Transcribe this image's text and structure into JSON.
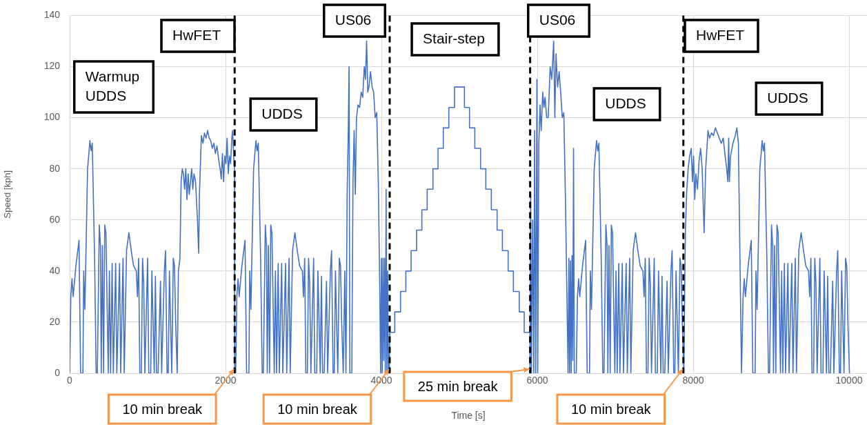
{
  "chart_data": {
    "type": "line",
    "xlabel": "Time [s]",
    "ylabel": "Speed [kph]",
    "xlim": [
      0,
      10230
    ],
    "xticks": [
      0,
      2000,
      4000,
      6000,
      8000,
      10000
    ],
    "ylim": [
      0,
      140
    ],
    "yticks": [
      0,
      20,
      40,
      60,
      80,
      100,
      120,
      140
    ],
    "grid": true,
    "legend": false,
    "x": [
      0,
      15,
      30,
      45,
      80,
      120,
      140,
      170,
      180,
      195,
      230,
      260,
      275,
      290,
      320,
      340,
      355,
      380,
      395,
      405,
      420,
      435,
      450,
      465,
      495,
      510,
      525,
      545,
      560,
      590,
      605,
      640,
      655,
      685,
      700,
      730,
      760,
      790,
      820,
      855,
      870,
      885,
      900,
      920,
      935,
      950,
      965,
      1000,
      1015,
      1040,
      1055,
      1085,
      1100,
      1115,
      1135,
      1165,
      1180,
      1215,
      1230,
      1250,
      1265,
      1280,
      1310,
      1330,
      1345,
      1360,
      1380,
      1395,
      1415,
      1430,
      1445,
      1460,
      1475,
      1490,
      1505,
      1520,
      1535,
      1550,
      1565,
      1580,
      1595,
      1615,
      1640,
      1655,
      1665,
      1690,
      1710,
      1730,
      1750,
      1770,
      1790,
      1810,
      1830,
      1850,
      1870,
      1890,
      1910,
      1930,
      1945,
      1960,
      1975,
      1990,
      2005,
      2020,
      2035,
      2050,
      2065,
      2080,
      2090,
      2105,
      2115,
      2117,
      2130,
      2145,
      2160,
      2175,
      2210,
      2250,
      2270,
      2300,
      2310,
      2325,
      2360,
      2390,
      2405,
      2420,
      2450,
      2470,
      2485,
      2510,
      2525,
      2535,
      2550,
      2565,
      2580,
      2595,
      2625,
      2640,
      2655,
      2675,
      2690,
      2720,
      2735,
      2770,
      2785,
      2815,
      2830,
      2860,
      2890,
      2920,
      2950,
      2985,
      3000,
      3015,
      3030,
      3050,
      3065,
      3080,
      3095,
      3130,
      3145,
      3170,
      3185,
      3215,
      3230,
      3245,
      3265,
      3295,
      3310,
      3345,
      3360,
      3380,
      3395,
      3410,
      3440,
      3460,
      3475,
      3490,
      3510,
      3530,
      3545,
      3560,
      3575,
      3585,
      3595,
      3620,
      3635,
      3650,
      3665,
      3680,
      3700,
      3720,
      3740,
      3760,
      3780,
      3795,
      3810,
      3825,
      3840,
      3860,
      3880,
      3900,
      3920,
      3940,
      3960,
      3980,
      3990,
      4000,
      4010,
      4020,
      4030,
      4040,
      4050,
      4060,
      4070,
      4080,
      4090,
      4100,
      4106,
      4108,
      4171,
      4171,
      4245,
      4245,
      4313,
      4313,
      4381,
      4381,
      4451,
      4451,
      4519,
      4519,
      4587,
      4587,
      4661,
      4661,
      4726,
      4726,
      4794,
      4794,
      4865,
      4865,
      4938,
      4938,
      5065,
      5065,
      5130,
      5130,
      5198,
      5198,
      5272,
      5272,
      5339,
      5339,
      5410,
      5410,
      5484,
      5484,
      5552,
      5552,
      5626,
      5626,
      5693,
      5693,
      5768,
      5768,
      5832,
      5832,
      5905,
      5906,
      5915,
      5925,
      5940,
      5955,
      5965,
      5980,
      5995,
      6005,
      6020,
      6035,
      6050,
      6070,
      6085,
      6100,
      6120,
      6140,
      6165,
      6185,
      6210,
      6225,
      6240,
      6260,
      6280,
      6300,
      6320,
      6340,
      6360,
      6380,
      6395,
      6405,
      6415,
      6425,
      6435,
      6445,
      6455,
      6465,
      6475,
      6490,
      6500,
      6515,
      6530,
      6545,
      6580,
      6620,
      6640,
      6670,
      6680,
      6695,
      6730,
      6760,
      6775,
      6790,
      6820,
      6840,
      6855,
      6880,
      6895,
      6905,
      6920,
      6935,
      6950,
      6965,
      6995,
      7010,
      7025,
      7045,
      7060,
      7090,
      7105,
      7140,
      7155,
      7185,
      7200,
      7230,
      7260,
      7290,
      7320,
      7355,
      7370,
      7385,
      7400,
      7420,
      7435,
      7450,
      7465,
      7500,
      7515,
      7540,
      7555,
      7585,
      7600,
      7615,
      7635,
      7665,
      7680,
      7715,
      7730,
      7750,
      7765,
      7780,
      7810,
      7830,
      7845,
      7860,
      7880,
      7890,
      7900,
      7915,
      7935,
      7955,
      7975,
      7990,
      8005,
      8020,
      8035,
      8055,
      8075,
      8095,
      8115,
      8140,
      8160,
      8190,
      8210,
      8235,
      8260,
      8285,
      8310,
      8335,
      8360,
      8385,
      8410,
      8430,
      8445,
      8455,
      8465,
      8480,
      8510,
      8540,
      8560,
      8580,
      8600,
      8620,
      8625,
      8640,
      8655,
      8670,
      8705,
      8745,
      8765,
      8795,
      8805,
      8820,
      8855,
      8885,
      8900,
      8915,
      8945,
      8965,
      8980,
      9005,
      9020,
      9030,
      9045,
      9060,
      9075,
      9090,
      9120,
      9135,
      9150,
      9170,
      9185,
      9215,
      9230,
      9265,
      9280,
      9310,
      9325,
      9355,
      9385,
      9415,
      9445,
      9480,
      9495,
      9510,
      9525,
      9545,
      9560,
      9575,
      9590,
      9625,
      9640,
      9665,
      9680,
      9710,
      9725,
      9740,
      9760,
      9790,
      9805,
      9840,
      9855,
      9875,
      9890,
      9905,
      9935,
      9955,
      9970,
      9985,
      10005
    ],
    "series": [
      {
        "color": "#4472c4",
        "values": [
          0,
          30,
          37,
          30,
          42,
          52,
          0,
          0,
          40,
          25,
          80,
          91,
          87,
          90,
          45,
          0,
          0,
          58,
          50,
          0,
          50,
          0,
          58,
          55,
          0,
          40,
          0,
          43,
          0,
          43,
          0,
          43,
          0,
          45,
          0,
          48,
          55,
          48,
          42,
          40,
          30,
          45,
          0,
          0,
          45,
          35,
          0,
          45,
          0,
          0,
          40,
          0,
          38,
          0,
          0,
          36,
          0,
          40,
          48,
          0,
          0,
          40,
          0,
          45,
          42,
          20,
          0,
          40,
          45,
          75,
          80,
          78,
          72,
          80,
          68,
          78,
          70,
          75,
          80,
          72,
          78,
          75,
          60,
          47,
          70,
          93,
          90,
          94,
          92,
          95,
          92,
          91,
          88,
          90,
          86,
          89,
          84,
          80,
          76,
          86,
          75,
          85,
          82,
          92,
          78,
          85,
          82,
          92,
          95,
          85,
          80,
          0,
          0,
          30,
          37,
          30,
          42,
          52,
          0,
          0,
          40,
          25,
          80,
          91,
          87,
          90,
          45,
          0,
          0,
          58,
          50,
          0,
          50,
          0,
          58,
          55,
          0,
          40,
          0,
          43,
          0,
          43,
          0,
          43,
          0,
          45,
          0,
          48,
          55,
          48,
          42,
          40,
          30,
          45,
          0,
          0,
          45,
          35,
          0,
          45,
          0,
          0,
          40,
          0,
          38,
          0,
          0,
          36,
          0,
          40,
          48,
          0,
          0,
          40,
          0,
          45,
          42,
          20,
          0,
          40,
          0,
          70,
          95,
          120,
          0,
          0,
          75,
          95,
          70,
          100,
          105,
          104,
          110,
          108,
          120,
          115,
          130,
          110,
          112,
          118,
          112,
          110,
          100,
          102,
          75,
          30,
          0,
          45,
          0,
          45,
          5,
          45,
          0,
          72,
          0,
          40,
          0,
          0,
          0,
          16,
          16,
          24,
          24,
          32,
          32,
          40,
          40,
          48,
          48,
          56,
          56,
          64,
          64,
          72,
          72,
          80,
          80,
          88,
          88,
          96,
          96,
          104,
          104,
          112,
          112,
          104,
          104,
          96,
          96,
          88,
          88,
          80,
          80,
          72,
          72,
          64,
          64,
          56,
          56,
          48,
          48,
          40,
          40,
          32,
          32,
          24,
          24,
          16,
          16,
          0,
          70,
          0,
          60,
          0,
          95,
          0,
          115,
          0,
          90,
          105,
          95,
          110,
          104,
          108,
          100,
          100,
          120,
          115,
          130,
          100,
          125,
          112,
          118,
          110,
          100,
          102,
          70,
          30,
          0,
          45,
          0,
          44,
          0,
          46,
          5,
          88,
          0,
          0,
          0,
          30,
          37,
          30,
          42,
          52,
          0,
          0,
          40,
          25,
          80,
          91,
          87,
          90,
          45,
          0,
          0,
          58,
          50,
          0,
          50,
          0,
          58,
          55,
          0,
          40,
          0,
          43,
          0,
          43,
          0,
          43,
          0,
          45,
          0,
          48,
          55,
          48,
          42,
          40,
          30,
          45,
          0,
          0,
          45,
          35,
          0,
          45,
          0,
          0,
          40,
          0,
          38,
          0,
          0,
          36,
          0,
          40,
          48,
          0,
          0,
          40,
          0,
          45,
          42,
          20,
          0,
          30,
          55,
          70,
          80,
          85,
          88,
          75,
          85,
          68,
          78,
          72,
          83,
          88,
          80,
          55,
          80,
          95,
          92,
          94,
          93,
          96,
          94,
          92,
          90,
          92,
          85,
          80,
          75,
          92,
          75,
          85,
          90,
          93,
          96,
          90,
          45,
          0,
          0,
          30,
          37,
          30,
          42,
          52,
          0,
          0,
          40,
          25,
          80,
          91,
          87,
          90,
          45,
          0,
          0,
          58,
          50,
          0,
          50,
          0,
          58,
          55,
          0,
          40,
          0,
          43,
          0,
          43,
          0,
          43,
          0,
          45,
          0,
          48,
          55,
          48,
          42,
          40,
          30,
          45,
          0,
          0,
          45,
          35,
          0,
          45,
          0,
          0,
          40,
          0,
          38,
          0,
          0,
          36,
          0,
          40,
          48,
          0,
          0,
          40,
          0,
          45,
          42,
          20,
          0
        ]
      }
    ],
    "ref_lines": [
      {
        "axis": "x",
        "value": 2117,
        "label": "10 min break",
        "color": "#000000",
        "line_style": "dashed"
      },
      {
        "axis": "x",
        "value": 4106,
        "label": "10 min break",
        "color": "#000000",
        "line_style": "dashed"
      },
      {
        "axis": "x",
        "value": 5908,
        "label": "25 min break",
        "color": "#000000",
        "line_style": "dashed"
      },
      {
        "axis": "x",
        "value": 7874,
        "label": "10 min break",
        "color": "#000000",
        "line_style": "dashed"
      }
    ],
    "annotations": [
      "Warmup UDDS",
      "HwFET",
      "UDDS",
      "US06",
      "Stair-step",
      "US06",
      "UDDS",
      "HwFET",
      "UDDS"
    ]
  }
}
